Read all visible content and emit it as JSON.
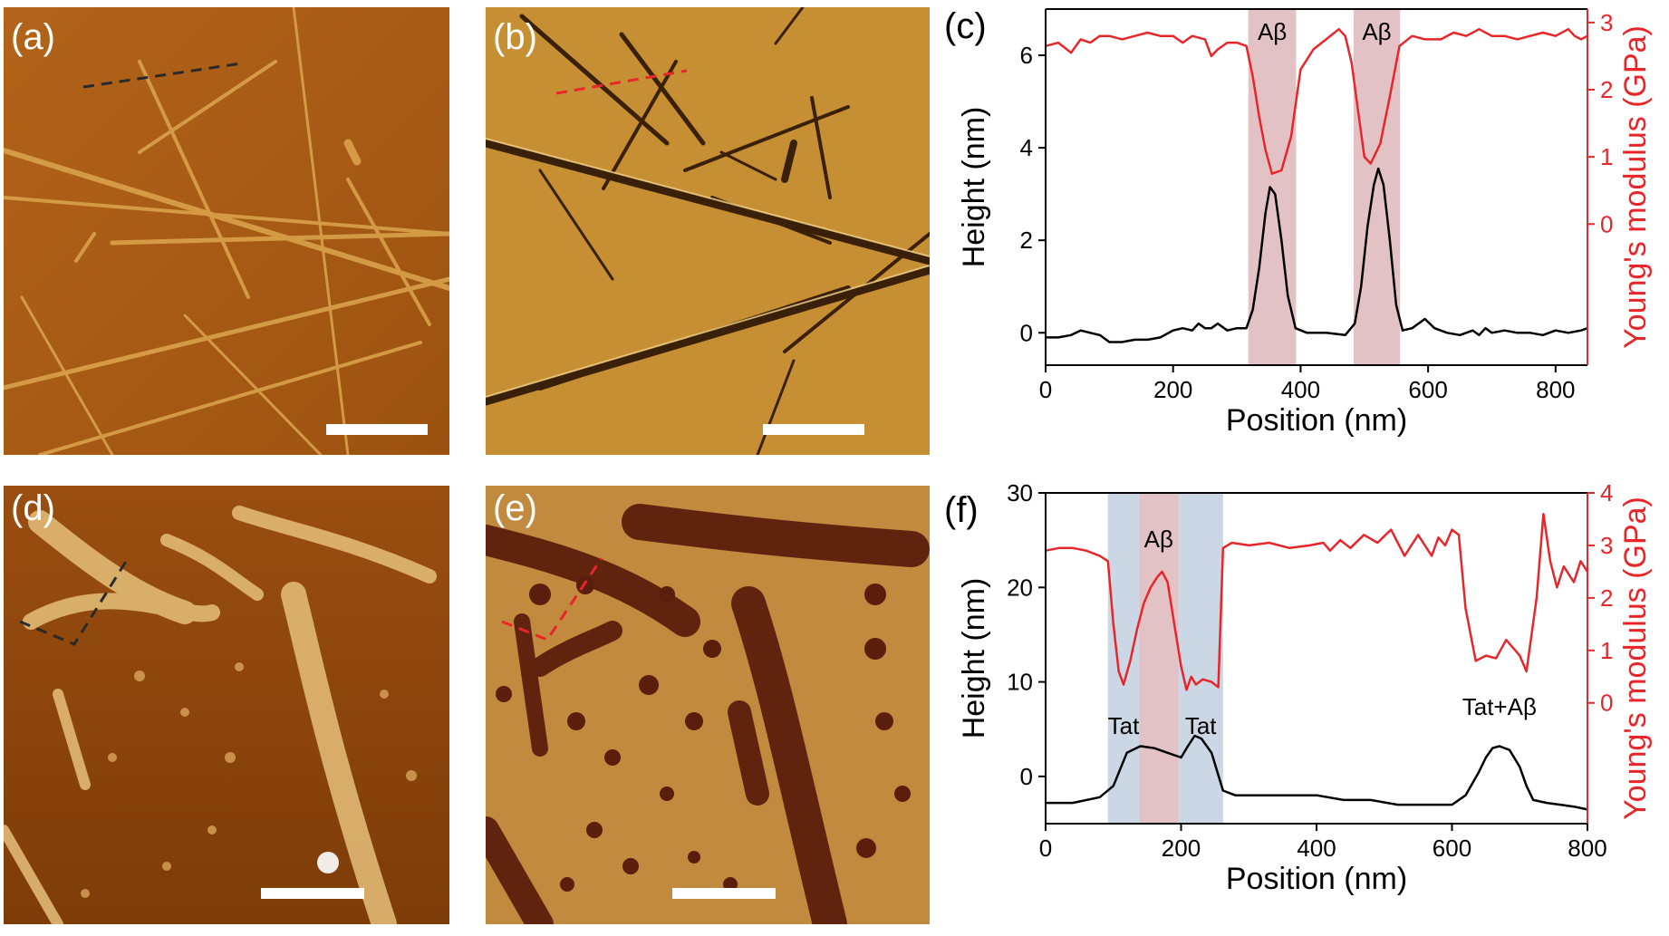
{
  "panels": {
    "a": {
      "label": "(a)"
    },
    "b": {
      "label": "(b)"
    },
    "d": {
      "label": "(d)"
    },
    "e": {
      "label": "(e)"
    }
  },
  "colors": {
    "height_line": "#000000",
    "modulus_line": "#e8262a",
    "modulus_axis": "#e8262a",
    "abeta_shade": "#d9aeb3",
    "tat_shade": "#b9c9dc"
  },
  "chart_data": [
    {
      "panel_label": "(c)",
      "type": "line",
      "xlabel": "Position (nm)",
      "ylabel": "Height (nm)",
      "y2label": "Young's modulus (GPa)",
      "xlim": [
        0,
        850
      ],
      "ylim": [
        -0.7,
        7
      ],
      "y2lim": [
        -2.1,
        3.2
      ],
      "xticks": [
        0,
        200,
        400,
        600,
        800
      ],
      "yticks": [
        0,
        2,
        4,
        6
      ],
      "y2ticks": [
        0,
        1,
        2,
        3
      ],
      "grid": false,
      "shaded_regions": [
        {
          "x0": 318,
          "x1": 393,
          "label": "Aβ",
          "kind": "abeta"
        },
        {
          "x0": 483,
          "x1": 556,
          "label": "Aβ",
          "kind": "abeta"
        }
      ],
      "series": [
        {
          "axis": "left",
          "x": [
            0,
            20,
            40,
            55,
            70,
            85,
            100,
            120,
            140,
            160,
            180,
            200,
            215,
            230,
            240,
            250,
            260,
            270,
            285,
            300,
            315,
            325,
            335,
            345,
            352,
            360,
            370,
            380,
            392,
            410,
            440,
            470,
            485,
            495,
            505,
            515,
            522,
            530,
            540,
            550,
            560,
            575,
            595,
            610,
            630,
            650,
            670,
            680,
            690,
            700,
            720,
            740,
            760,
            780,
            800,
            820,
            840,
            850
          ],
          "y": [
            -0.1,
            -0.1,
            -0.05,
            0.05,
            0.0,
            -0.05,
            -0.2,
            -0.2,
            -0.15,
            -0.15,
            -0.1,
            0.05,
            0.1,
            0.05,
            0.2,
            0.1,
            0.1,
            0.2,
            0.05,
            0.1,
            0.1,
            0.5,
            1.4,
            2.6,
            3.15,
            3.0,
            2.0,
            0.8,
            0.1,
            0.0,
            0.0,
            -0.05,
            0.2,
            1.0,
            2.3,
            3.2,
            3.55,
            3.2,
            2.0,
            0.6,
            0.05,
            0.1,
            0.3,
            0.1,
            0.0,
            -0.05,
            0.05,
            -0.05,
            0.1,
            0.0,
            0.05,
            0.0,
            0.0,
            -0.05,
            0.05,
            0.0,
            0.05,
            0.1
          ]
        },
        {
          "axis": "right",
          "x": [
            0,
            20,
            40,
            55,
            70,
            85,
            100,
            120,
            140,
            160,
            180,
            200,
            215,
            230,
            250,
            260,
            270,
            285,
            300,
            315,
            325,
            335,
            345,
            355,
            370,
            385,
            400,
            420,
            440,
            460,
            470,
            480,
            490,
            500,
            510,
            525,
            540,
            555,
            575,
            595,
            620,
            640,
            660,
            680,
            700,
            720,
            740,
            760,
            780,
            800,
            820,
            830,
            840,
            850
          ],
          "y": [
            2.65,
            2.7,
            2.55,
            2.75,
            2.7,
            2.8,
            2.8,
            2.75,
            2.8,
            2.85,
            2.8,
            2.8,
            2.7,
            2.8,
            2.75,
            2.5,
            2.6,
            2.7,
            2.7,
            2.65,
            2.2,
            1.6,
            1.1,
            0.75,
            0.8,
            1.3,
            2.3,
            2.6,
            2.75,
            2.9,
            2.8,
            2.4,
            1.7,
            1.0,
            0.9,
            1.2,
            1.9,
            2.65,
            2.8,
            2.75,
            2.75,
            2.85,
            2.8,
            2.9,
            2.8,
            2.8,
            2.75,
            2.8,
            2.85,
            2.8,
            2.9,
            2.8,
            2.75,
            2.8
          ]
        }
      ]
    },
    {
      "panel_label": "(f)",
      "type": "line",
      "xlabel": "Position (nm)",
      "ylabel": "Height (nm)",
      "y2label": "Young's modulus (GPa)",
      "xlim": [
        0,
        800
      ],
      "ylim": [
        -5,
        30
      ],
      "y2lim": [
        -2.3,
        4
      ],
      "xticks": [
        0,
        200,
        400,
        600,
        800
      ],
      "yticks": [
        0,
        10,
        20,
        30
      ],
      "y2ticks": [
        0,
        1,
        2,
        3,
        4
      ],
      "grid": false,
      "shaded_regions": [
        {
          "x0": 92,
          "x1": 138,
          "label": "Tat",
          "kind": "tat"
        },
        {
          "x0": 138,
          "x1": 196,
          "label": "Aβ",
          "kind": "abeta"
        },
        {
          "x0": 196,
          "x1": 262,
          "label": "Tat",
          "kind": "tat"
        }
      ],
      "annotations": [
        {
          "text": "Tat+Aβ",
          "x": 670,
          "y": 6.5
        }
      ],
      "series": [
        {
          "axis": "left",
          "x": [
            0,
            40,
            80,
            100,
            120,
            140,
            160,
            180,
            200,
            210,
            220,
            230,
            245,
            262,
            280,
            320,
            360,
            400,
            440,
            480,
            520,
            560,
            600,
            620,
            640,
            650,
            660,
            670,
            685,
            700,
            710,
            720,
            740,
            760,
            780,
            800
          ],
          "y": [
            -2.8,
            -2.8,
            -2.2,
            -1.0,
            2.5,
            3.2,
            3.0,
            2.5,
            2.0,
            3.2,
            4.3,
            4.0,
            2.5,
            -1.5,
            -2.0,
            -2.0,
            -2.0,
            -2.0,
            -2.5,
            -2.5,
            -3.0,
            -3.0,
            -3.0,
            -2.0,
            0.5,
            2.0,
            3.0,
            3.2,
            2.8,
            1.0,
            -1.0,
            -2.5,
            -2.8,
            -3.0,
            -3.2,
            -3.5
          ]
        },
        {
          "axis": "right",
          "x": [
            0,
            20,
            40,
            60,
            80,
            92,
            100,
            108,
            115,
            125,
            135,
            145,
            155,
            165,
            172,
            180,
            190,
            200,
            208,
            215,
            222,
            232,
            245,
            255,
            262,
            275,
            300,
            330,
            360,
            390,
            410,
            420,
            435,
            450,
            470,
            490,
            510,
            530,
            550,
            570,
            580,
            590,
            600,
            610,
            620,
            635,
            650,
            665,
            680,
            700,
            710,
            725,
            735,
            745,
            755,
            765,
            780,
            790,
            800
          ],
          "y": [
            2.9,
            2.95,
            2.95,
            2.9,
            2.8,
            2.7,
            1.5,
            0.6,
            0.35,
            0.8,
            1.4,
            1.9,
            2.2,
            2.4,
            2.5,
            2.3,
            1.5,
            0.7,
            0.25,
            0.5,
            0.35,
            0.45,
            0.4,
            0.3,
            2.95,
            3.05,
            3.0,
            3.05,
            2.95,
            3.0,
            3.05,
            2.9,
            3.1,
            2.95,
            3.2,
            3.05,
            3.3,
            2.8,
            3.2,
            2.8,
            3.15,
            3.0,
            3.3,
            3.2,
            1.8,
            0.8,
            0.9,
            0.85,
            1.2,
            0.9,
            0.6,
            2.0,
            3.6,
            2.7,
            2.2,
            2.6,
            2.3,
            2.7,
            2.5
          ]
        }
      ]
    }
  ]
}
